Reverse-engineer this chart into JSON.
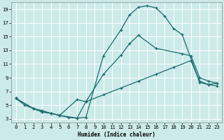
{
  "background_color": "#cceaea",
  "grid_color": "#ffffff",
  "line_color": "#1a6b6b",
  "xlabel": "Humidex (Indice chaleur)",
  "xlim": [
    -0.5,
    23.5
  ],
  "ylim": [
    2.5,
    20
  ],
  "xticks": [
    0,
    1,
    2,
    3,
    4,
    5,
    6,
    7,
    8,
    9,
    10,
    11,
    12,
    13,
    14,
    15,
    16,
    17,
    18,
    19,
    20,
    21,
    22,
    23
  ],
  "yticks": [
    3,
    5,
    7,
    9,
    11,
    13,
    15,
    17,
    19
  ],
  "line1_x": [
    0,
    1,
    2,
    3,
    4,
    5,
    6,
    7,
    8,
    10,
    12,
    13,
    14,
    15,
    16,
    17,
    18,
    19,
    21,
    22,
    23
  ],
  "line1_y": [
    6,
    5,
    4.5,
    4.2,
    3.8,
    3.5,
    3.2,
    3.1,
    3.2,
    12.2,
    16.0,
    18.2,
    19.3,
    19.5,
    19.2,
    18.0,
    16.2,
    15.3,
    8.3,
    8.0,
    8.2
  ],
  "line2_x": [
    0,
    2,
    3,
    4,
    5,
    7,
    8,
    10,
    12,
    13,
    14,
    16,
    19,
    20,
    21,
    22,
    23
  ],
  "line2_y": [
    6,
    4.5,
    4.0,
    3.8,
    3.5,
    5.8,
    5.5,
    9.5,
    12.3,
    14.0,
    15.2,
    13.3,
    12.5,
    12.2,
    9.0,
    8.5,
    8.2
  ],
  "line3_x": [
    0,
    2,
    3,
    4,
    5,
    7,
    8,
    10,
    12,
    14,
    16,
    18,
    20,
    21,
    22,
    23
  ],
  "line3_y": [
    6,
    4.5,
    4.0,
    3.8,
    3.5,
    3.1,
    5.5,
    6.5,
    7.5,
    8.5,
    9.5,
    10.5,
    11.5,
    8.5,
    8.0,
    7.8
  ]
}
